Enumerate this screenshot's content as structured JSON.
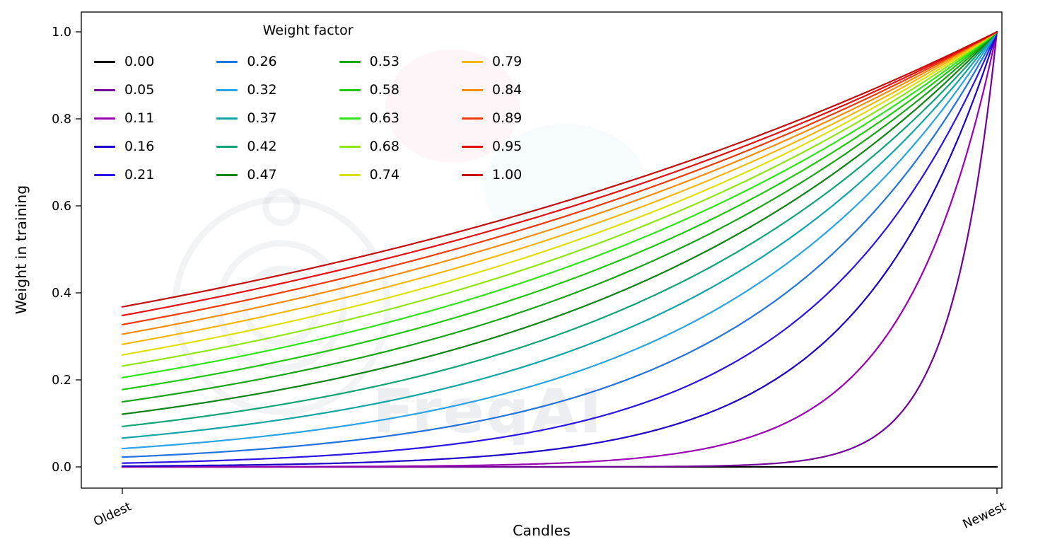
{
  "figure": {
    "background": "#ffffff"
  },
  "watermark": {
    "text": "FreqAI"
  },
  "chart_data": {
    "type": "line",
    "title": "",
    "xlabel": "Candles",
    "ylabel": "Weight in training",
    "x_tick_labels": [
      "Oldest",
      "Newest"
    ],
    "y_ticks": [
      0.0,
      0.2,
      0.4,
      0.6,
      0.8,
      1.0
    ],
    "y_tick_labels": [
      "0.0",
      "0.2",
      "0.4",
      "0.6",
      "0.8",
      "1.0"
    ],
    "ylim": [
      0,
      1
    ],
    "x_range_note": "x normalized: 0 = Oldest candle, 1 = Newest candle",
    "grid": false,
    "legend": {
      "title": "Weight factor",
      "columns": 4,
      "rows": 5,
      "position": "upper left",
      "frame": false,
      "order": "column-major"
    },
    "formula": "weight(x) = exp(-(1 - x) / factor); factor = 0 gives constant weight 0",
    "sample_x": [
      0,
      0.1,
      0.2,
      0.3,
      0.4,
      0.5,
      0.6,
      0.7,
      0.8,
      0.9,
      1.0
    ],
    "series": [
      {
        "label": "0.00",
        "factor": 0,
        "color": "#000000",
        "sampled_y": [
          0,
          0,
          0,
          0,
          0,
          0,
          0,
          0,
          0,
          0,
          0
        ]
      },
      {
        "label": "0.05",
        "factor": 0.0526,
        "color": "#730099",
        "sampled_y": [
          0,
          0,
          0,
          0,
          0,
          0,
          0.001,
          0.003,
          0.022,
          0.15,
          1
        ]
      },
      {
        "label": "0.11",
        "factor": 0.1053,
        "color": "#9b00b3",
        "sampled_y": [
          0,
          0,
          0.001,
          0.001,
          0.003,
          0.009,
          0.022,
          0.058,
          0.15,
          0.387,
          1
        ]
      },
      {
        "label": "0.16",
        "factor": 0.1579,
        "color": "#1c00c8",
        "sampled_y": [
          0.002,
          0.003,
          0.006,
          0.012,
          0.022,
          0.042,
          0.079,
          0.15,
          0.282,
          0.531,
          1
        ]
      },
      {
        "label": "0.21",
        "factor": 0.2105,
        "color": "#2a14e6",
        "sampled_y": [
          0.009,
          0.014,
          0.022,
          0.036,
          0.058,
          0.093,
          0.15,
          0.241,
          0.387,
          0.622,
          1
        ]
      },
      {
        "label": "0.26",
        "factor": 0.2632,
        "color": "#2273dd",
        "sampled_y": [
          0.022,
          0.033,
          0.048,
          0.07,
          0.102,
          0.15,
          0.219,
          0.32,
          0.468,
          0.684,
          1
        ]
      },
      {
        "label": "0.32",
        "factor": 0.3158,
        "color": "#29a3e6",
        "sampled_y": [
          0.042,
          0.058,
          0.079,
          0.109,
          0.15,
          0.205,
          0.282,
          0.387,
          0.531,
          0.729,
          1
        ]
      },
      {
        "label": "0.37",
        "factor": 0.3684,
        "color": "#12a5a5",
        "sampled_y": [
          0.066,
          0.087,
          0.114,
          0.15,
          0.196,
          0.257,
          0.338,
          0.443,
          0.581,
          0.762,
          1
        ]
      },
      {
        "label": "0.42",
        "factor": 0.4211,
        "color": "#10a377",
        "sampled_y": [
          0.093,
          0.118,
          0.15,
          0.19,
          0.241,
          0.305,
          0.387,
          0.49,
          0.622,
          0.789,
          1
        ]
      },
      {
        "label": "0.47",
        "factor": 0.4737,
        "color": "#0e8414",
        "sampled_y": [
          0.121,
          0.15,
          0.185,
          0.228,
          0.282,
          0.348,
          0.43,
          0.531,
          0.656,
          0.81,
          1
        ]
      },
      {
        "label": "0.53",
        "factor": 0.5263,
        "color": "#17a517",
        "sampled_y": [
          0.15,
          0.181,
          0.219,
          0.264,
          0.32,
          0.387,
          0.468,
          0.565,
          0.684,
          0.827,
          1
        ]
      },
      {
        "label": "0.58",
        "factor": 0.5789,
        "color": "#1fc70f",
        "sampled_y": [
          0.178,
          0.211,
          0.251,
          0.298,
          0.355,
          0.422,
          0.501,
          0.596,
          0.708,
          0.841,
          1
        ]
      },
      {
        "label": "0.63",
        "factor": 0.6316,
        "color": "#2ee617",
        "sampled_y": [
          0.205,
          0.241,
          0.282,
          0.33,
          0.387,
          0.453,
          0.531,
          0.622,
          0.729,
          0.854,
          1
        ]
      },
      {
        "label": "0.68",
        "factor": 0.6842,
        "color": "#8fe612",
        "sampled_y": [
          0.232,
          0.268,
          0.311,
          0.359,
          0.416,
          0.482,
          0.557,
          0.645,
          0.747,
          0.864,
          1
        ]
      },
      {
        "label": "0.74",
        "factor": 0.7368,
        "color": "#dfdf0c",
        "sampled_y": [
          0.257,
          0.295,
          0.338,
          0.387,
          0.443,
          0.507,
          0.581,
          0.666,
          0.762,
          0.873,
          1
        ]
      },
      {
        "label": "0.79",
        "factor": 0.7895,
        "color": "#f5b60d",
        "sampled_y": [
          0.282,
          0.32,
          0.363,
          0.412,
          0.468,
          0.531,
          0.603,
          0.684,
          0.776,
          0.881,
          1
        ]
      },
      {
        "label": "0.84",
        "factor": 0.8421,
        "color": "#f78c0a",
        "sampled_y": [
          0.305,
          0.343,
          0.387,
          0.435,
          0.49,
          0.552,
          0.622,
          0.7,
          0.789,
          0.888,
          1
        ]
      },
      {
        "label": "0.89",
        "factor": 0.8947,
        "color": "#f23908",
        "sampled_y": [
          0.327,
          0.366,
          0.409,
          0.457,
          0.511,
          0.572,
          0.64,
          0.715,
          0.8,
          0.894,
          1
        ]
      },
      {
        "label": "0.95",
        "factor": 0.9474,
        "color": "#e61010",
        "sampled_y": [
          0.348,
          0.387,
          0.43,
          0.478,
          0.531,
          0.59,
          0.656,
          0.729,
          0.81,
          0.9,
          1
        ]
      },
      {
        "label": "1.00",
        "factor": 1.0,
        "color": "#c40d0d",
        "sampled_y": [
          0.368,
          0.407,
          0.449,
          0.497,
          0.549,
          0.607,
          0.67,
          0.741,
          0.819,
          0.905,
          1
        ]
      }
    ]
  }
}
